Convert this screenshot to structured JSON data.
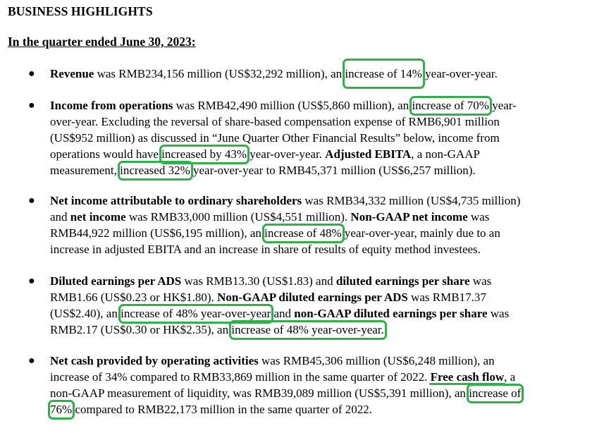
{
  "heading": "BUSINESS HIGHLIGHTS",
  "subheading": "In the quarter ended June 30, 2023:",
  "bullet_symbol": "●",
  "highlight_color": "#2eb04a",
  "items": [
    {
      "lines": [
        [
          {
            "t": "Revenue",
            "s": "b"
          },
          {
            "t": " was RMB234,156 million (US$32,292 million), an "
          },
          {
            "t": "increase of 14%",
            "s": "hl tall"
          },
          {
            "t": " year-over-year."
          }
        ]
      ]
    },
    {
      "lines": [
        [
          {
            "t": "Income from operations",
            "s": "b"
          },
          {
            "t": " was RMB42,490 million (US$5,860 million), an "
          },
          {
            "t": "increase of 70%",
            "s": "hl"
          },
          {
            "t": " year-"
          }
        ],
        [
          {
            "t": "over-year. Excluding the reversal of share-based compensation expense of RMB6,901 million"
          }
        ],
        [
          {
            "t": "(US$952 million) as discussed in “June Quarter Other Financial Results” below, income from"
          }
        ],
        [
          {
            "t": "operations would have "
          },
          {
            "t": "increased by 43%",
            "s": "hl"
          },
          {
            "t": " year-over-year. "
          },
          {
            "t": "Adjusted EBITA",
            "s": "b"
          },
          {
            "t": ", a non-GAAP"
          }
        ],
        [
          {
            "t": "measurement, "
          },
          {
            "t": "increased 32%",
            "s": "hl"
          },
          {
            "t": " year-over-year to RMB45,371 million (US$6,257 million)."
          }
        ]
      ]
    },
    {
      "lines": [
        [
          {
            "t": "Net income attributable to ordinary shareholders",
            "s": "b"
          },
          {
            "t": " was RMB34,332 million (US$4,735 million)"
          }
        ],
        [
          {
            "t": "and "
          },
          {
            "t": "net income",
            "s": "b"
          },
          {
            "t": " was RMB33,000 million (US$4,551 million). "
          },
          {
            "t": "Non-GAAP net income",
            "s": "b"
          },
          {
            "t": " was"
          }
        ],
        [
          {
            "t": "RMB44,922 million (US$6,195 million), an "
          },
          {
            "t": "increase of 48%",
            "s": "hl"
          },
          {
            "t": " year-over-year, mainly due to an"
          }
        ],
        [
          {
            "t": "increase in adjusted EBITA and an increase in share of results of equity method investees."
          }
        ]
      ]
    },
    {
      "lines": [
        [
          {
            "t": "Diluted earnings per ADS",
            "s": "b"
          },
          {
            "t": " was RMB13.30 (US$1.83) and "
          },
          {
            "t": "diluted earnings per share",
            "s": "b"
          },
          {
            "t": " was"
          }
        ],
        [
          {
            "t": "RMB1.66 (US$0.23 or HK$1.80). "
          },
          {
            "t": "Non-GAAP diluted earnings per ADS",
            "s": "b"
          },
          {
            "t": " was RMB17.37"
          }
        ],
        [
          {
            "t": "(US$2.40), an "
          },
          {
            "t": "increase of 48% year-over-year",
            "s": "hl"
          },
          {
            "t": " and "
          },
          {
            "t": "non-GAAP diluted earnings per share",
            "s": "b"
          },
          {
            "t": " was"
          }
        ],
        [
          {
            "t": "RMB2.17 (US$0.30 or HK$2.35), an "
          },
          {
            "t": "increase of 48% year-over-year.",
            "s": "hl"
          }
        ]
      ]
    },
    {
      "lines": [
        [
          {
            "t": "Net cash provided by operating activities",
            "s": "b"
          },
          {
            "t": " was RMB45,306 million (US$6,248 million), an"
          }
        ],
        [
          {
            "t": "increase of 34% compared to RMB33,869 million in the same quarter of 2022. "
          },
          {
            "t": "Free cash flow",
            "s": "b ul-green"
          },
          {
            "t": ", a"
          }
        ],
        [
          {
            "t": "non-GAAP measurement of liquidity, was RMB39,089 million (US$5,391 million), an "
          },
          {
            "t": "increase of",
            "s": "hl"
          }
        ],
        [
          {
            "t": "76%",
            "s": "hl"
          },
          {
            "t": " compared to RMB22,173 million in the same quarter of 2022."
          }
        ]
      ]
    }
  ]
}
